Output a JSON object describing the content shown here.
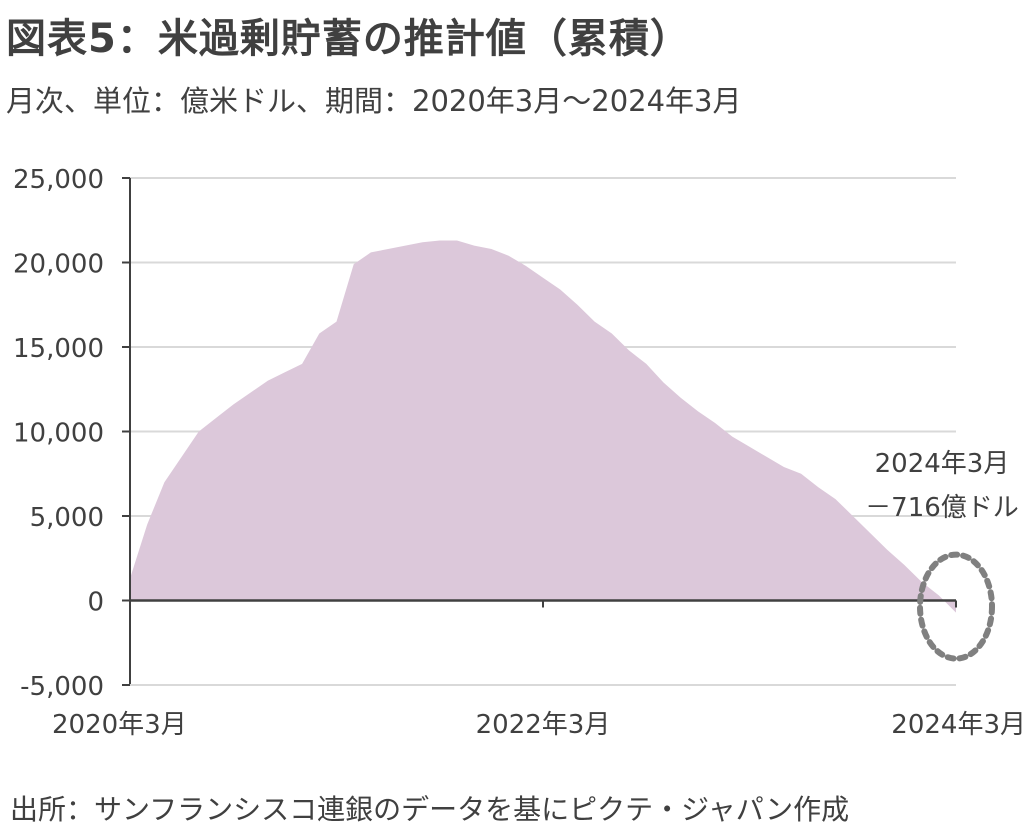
{
  "header": {
    "title": "図表5：米過剰貯蓄の推計値（累積）",
    "subtitle": "月次、単位：億米ドル、期間：2020年3月～2024年3月"
  },
  "footer": {
    "source": "出所：サンフランシスコ連銀のデータを基にピクテ・ジャパン作成"
  },
  "chart_data": {
    "type": "area",
    "x": [
      "2020-03",
      "2020-04",
      "2020-05",
      "2020-06",
      "2020-07",
      "2020-08",
      "2020-09",
      "2020-10",
      "2020-11",
      "2020-12",
      "2021-01",
      "2021-02",
      "2021-03",
      "2021-04",
      "2021-05",
      "2021-06",
      "2021-07",
      "2021-08",
      "2021-09",
      "2021-10",
      "2021-11",
      "2021-12",
      "2022-01",
      "2022-02",
      "2022-03",
      "2022-04",
      "2022-05",
      "2022-06",
      "2022-07",
      "2022-08",
      "2022-09",
      "2022-10",
      "2022-11",
      "2022-12",
      "2023-01",
      "2023-02",
      "2023-03",
      "2023-04",
      "2023-05",
      "2023-06",
      "2023-07",
      "2023-08",
      "2023-09",
      "2023-10",
      "2023-11",
      "2023-12",
      "2024-01",
      "2024-02",
      "2024-03"
    ],
    "values": [
      1300,
      4500,
      7000,
      8500,
      10000,
      10800,
      11600,
      12300,
      13000,
      13500,
      14000,
      15800,
      16500,
      19900,
      20600,
      20800,
      21000,
      21200,
      21300,
      21300,
      21000,
      20800,
      20400,
      19800,
      19100,
      18400,
      17500,
      16500,
      15800,
      14800,
      14000,
      12900,
      12000,
      11200,
      10500,
      9700,
      9100,
      8500,
      7900,
      7500,
      6700,
      6000,
      5000,
      4000,
      3000,
      2100,
      1100,
      300,
      -716
    ],
    "xlabel": "",
    "ylabel": "",
    "ylim": [
      -5000,
      25000
    ],
    "yticks": [
      25000,
      20000,
      15000,
      10000,
      5000,
      0,
      -5000
    ],
    "ytick_labels": [
      "25,000",
      "20,000",
      "15,000",
      "10,000",
      "5,000",
      "0",
      "-5,000"
    ],
    "xticks": [
      "2020-03",
      "2022-03",
      "2024-03"
    ],
    "xtick_labels": [
      "2020年3月",
      "2022年3月",
      "2024年3月"
    ],
    "grid": true,
    "colors": {
      "area": "#dcc8da",
      "negative_label": "#c00000",
      "axis": "#404040",
      "grid": "#d9d9d9",
      "marker": "#808080"
    },
    "annotation": {
      "lines": [
        "2024年3月",
        "－716億ドル"
      ],
      "target": "2024-03",
      "marker": "dotted-ellipse"
    }
  }
}
